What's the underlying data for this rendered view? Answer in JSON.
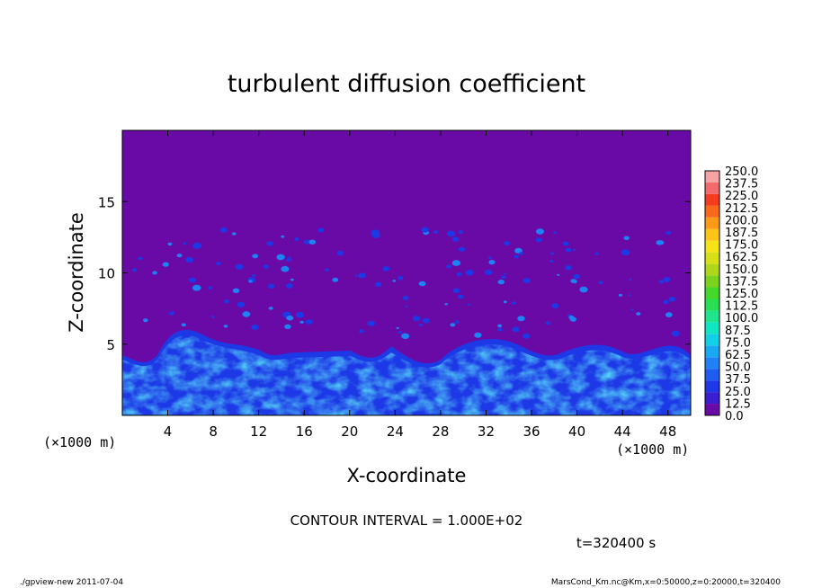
{
  "chart_data": {
    "type": "heatmap",
    "title": "turbulent diffusion coefficient",
    "xlabel": "X-coordinate",
    "ylabel": "Z-coordinate",
    "x_unit_label": "(×1000 m)",
    "y_unit_label": "(×1000 m)",
    "xlim": [
      0,
      50
    ],
    "ylim": [
      0,
      20
    ],
    "x_ticks": [
      4,
      8,
      12,
      16,
      20,
      24,
      28,
      32,
      36,
      40,
      44,
      48
    ],
    "y_ticks": [
      5,
      10,
      15
    ],
    "colorbar": {
      "levels": [
        0.0,
        12.5,
        25.0,
        37.5,
        50.0,
        62.5,
        75.0,
        87.5,
        100.0,
        112.5,
        125.0,
        137.5,
        150.0,
        162.5,
        175.0,
        187.5,
        200.0,
        212.5,
        225.0,
        237.5,
        250.0
      ],
      "labels": [
        "0.0",
        "12.5",
        "25.0",
        "37.5",
        "50.0",
        "62.5",
        "75.0",
        "87.5",
        "100.0",
        "112.5",
        "125.0",
        "137.5",
        "150.0",
        "162.5",
        "175.0",
        "187.5",
        "200.0",
        "212.5",
        "225.0",
        "237.5",
        "250.0"
      ],
      "colors": [
        "#6a0aa6",
        "#3a1ecf",
        "#1d38e6",
        "#1f5cf0",
        "#1e82f4",
        "#17a9f2",
        "#12cfe8",
        "#10e6c2",
        "#1fe68c",
        "#27e052",
        "#44d82a",
        "#7ad41e",
        "#aed61a",
        "#d7e016",
        "#f7e418",
        "#fcc417",
        "#fb9a17",
        "#f8691a",
        "#f53c1f",
        "#f36a6a",
        "#f7a3a3"
      ]
    },
    "contour_interval": "CONTOUR INTERVAL = 1.000E+02",
    "time_label": "t=320400 s",
    "footer_left": "./gpview-new  2011-07-04",
    "footer_right": "MarsCond_Km.nc@Km,x=0:50000,z=0:20000,t=320400"
  }
}
